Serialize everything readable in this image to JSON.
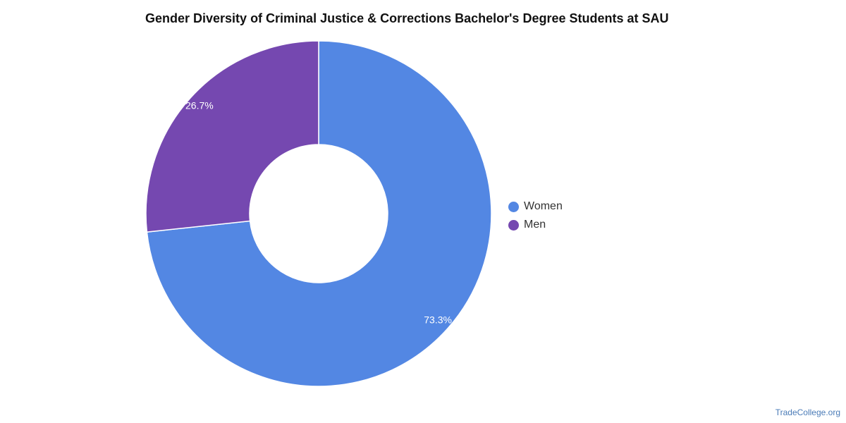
{
  "chart_data": {
    "type": "pie",
    "title": "Gender Diversity of Criminal Justice & Corrections Bachelor's Degree Students at SAU",
    "donut": true,
    "slices": [
      {
        "name": "Women",
        "value": 73.3,
        "label": "73.3%",
        "color": "#5387e3"
      },
      {
        "name": "Men",
        "value": 26.7,
        "label": "26.7%",
        "color": "#7548b0"
      }
    ],
    "legend_position": "right"
  },
  "footer": {
    "watermark": "TradeCollege.org"
  }
}
